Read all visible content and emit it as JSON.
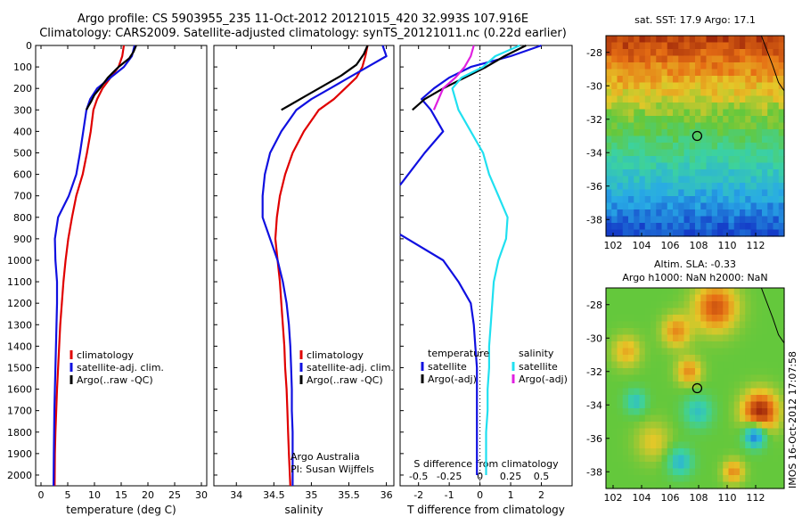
{
  "header": {
    "line1": "Argo profile: CS 5903955_235 11-Oct-2012 20121015_420 32.993S 107.916E",
    "line2": "Climatology: CARS2009. Satellite-adjusted climatology: synTS_20121011.nc (0.22d earlier)"
  },
  "side_stamp": "IMOS 16-Oct-2012 17:07:58",
  "colors": {
    "climatology": "#e00000",
    "satellite": "#1010e0",
    "argo": "#000000",
    "argo_adj_s": "#e020e0",
    "satellite_s": "#20e0f0"
  },
  "chart_data": [
    {
      "type": "line",
      "xlabel": "temperature (deg C)",
      "ylabel": "",
      "xlim": [
        -1,
        31
      ],
      "ylim": [
        2050,
        0
      ],
      "xticks": [
        "0",
        "5",
        "10",
        "15",
        "20",
        "25",
        "30"
      ],
      "yticks": [
        "0",
        "100",
        "200",
        "300",
        "400",
        "500",
        "600",
        "700",
        "800",
        "900",
        "1000",
        "1100",
        "1200",
        "1300",
        "1400",
        "1500",
        "1600",
        "1700",
        "1800",
        "1900",
        "2000"
      ],
      "legend": [
        "climatology",
        "satellite-adj. clim.",
        "Argo(..raw -QC)"
      ],
      "series": [
        {
          "name": "climatology",
          "color": "#e00000",
          "x": [
            15.5,
            15.2,
            14.5,
            13,
            11.5,
            10.5,
            9.8,
            9.3,
            8.6,
            7.8,
            6.6,
            5.8,
            5.1,
            4.6,
            4.2,
            3.9,
            3.6,
            3.4,
            3.2,
            3.0,
            2.85,
            2.7,
            2.6,
            2.55
          ],
          "y": [
            0,
            50,
            100,
            150,
            200,
            250,
            300,
            400,
            500,
            600,
            700,
            800,
            900,
            1000,
            1100,
            1200,
            1300,
            1400,
            1500,
            1600,
            1700,
            1800,
            1900,
            2050
          ]
        },
        {
          "name": "satellite-adj. clim.",
          "color": "#1010e0",
          "x": [
            17.5,
            17,
            15.5,
            13,
            10.5,
            9.2,
            8.5,
            7.9,
            7.3,
            6.6,
            5.2,
            3.2,
            2.6,
            2.7,
            3.0,
            3.0,
            2.9,
            2.8,
            2.7,
            2.6,
            2.5,
            2.45,
            2.4,
            2.35
          ],
          "y": [
            0,
            50,
            100,
            150,
            200,
            250,
            300,
            400,
            500,
            600,
            700,
            800,
            900,
            1000,
            1100,
            1200,
            1300,
            1400,
            1500,
            1600,
            1700,
            1800,
            1900,
            2050
          ]
        },
        {
          "name": "Argo(..raw -QC)",
          "color": "#000000",
          "x": [
            17.8,
            17.3,
            16.5,
            14.5,
            12.5,
            11,
            10,
            9.4,
            8.8,
            8.5
          ],
          "y": [
            0,
            30,
            60,
            100,
            150,
            200,
            230,
            260,
            285,
            300
          ]
        }
      ],
      "text_annotations": []
    },
    {
      "type": "line",
      "xlabel": "salinity",
      "ylabel": "",
      "xlim": [
        33.7,
        36.1
      ],
      "ylim": [
        2050,
        0
      ],
      "xticks": [
        "34",
        "34.5",
        "35",
        "35.5",
        "36"
      ],
      "legend": [
        "climatology",
        "satellite-adj. clim.",
        "Argo(..raw -QC)"
      ],
      "series": [
        {
          "name": "climatology",
          "color": "#e00000",
          "x": [
            35.75,
            35.72,
            35.68,
            35.6,
            35.45,
            35.3,
            35.1,
            34.9,
            34.75,
            34.65,
            34.58,
            34.54,
            34.52,
            34.55,
            34.58,
            34.6,
            34.62,
            34.64,
            34.65,
            34.67,
            34.68,
            34.69,
            34.7,
            34.72
          ],
          "y": [
            0,
            50,
            100,
            150,
            200,
            250,
            300,
            400,
            500,
            600,
            700,
            800,
            900,
            1000,
            1100,
            1200,
            1300,
            1400,
            1500,
            1600,
            1700,
            1800,
            1900,
            2050
          ]
        },
        {
          "name": "satellite-adj. clim.",
          "color": "#1010e0",
          "x": [
            35.95,
            36.0,
            35.75,
            35.5,
            35.25,
            35.0,
            34.8,
            34.6,
            34.45,
            34.38,
            34.35,
            34.35,
            34.45,
            34.55,
            34.62,
            34.67,
            34.7,
            34.72,
            34.73,
            34.74,
            34.74,
            34.75,
            34.75,
            34.75
          ],
          "y": [
            0,
            50,
            100,
            150,
            200,
            250,
            300,
            400,
            500,
            600,
            700,
            800,
            900,
            1000,
            1100,
            1200,
            1300,
            1400,
            1500,
            1600,
            1700,
            1800,
            1900,
            2050
          ]
        },
        {
          "name": "Argo(..raw -QC)",
          "color": "#000000",
          "x": [
            35.75,
            35.7,
            35.6,
            35.4,
            35.15,
            34.9,
            34.7,
            34.6
          ],
          "y": [
            0,
            40,
            90,
            140,
            190,
            240,
            280,
            300
          ]
        }
      ],
      "text_annotations": [
        "Argo Australia",
        "PI: Susan Wijffels"
      ]
    },
    {
      "type": "line",
      "xlabel": "T difference from climatology",
      "xlabel_top": "S difference from climatology",
      "xlim": [
        -2.6,
        3.0
      ],
      "ylim": [
        2050,
        0
      ],
      "xticks": [
        "-2",
        "-1",
        "0",
        "1",
        "2"
      ],
      "xticks_top": [
        "-0.5",
        "-0.25",
        "0",
        "0.25",
        "0.5"
      ],
      "legend_groups": [
        {
          "title": "temperature",
          "entries": [
            "satellite",
            "Argo(-adj)"
          ]
        },
        {
          "title": "salinity",
          "entries": [
            "satellite",
            "Argo(-adj)"
          ]
        }
      ],
      "series": [
        {
          "name": "satellite",
          "group": "temperature",
          "color": "#1010e0",
          "x": [
            2,
            1.0,
            -0.3,
            -1.0,
            -1.5,
            -1.9,
            -1.6,
            -1.2,
            -1.8,
            -2.6,
            null,
            -2.6,
            -1.2,
            -0.7,
            -0.3,
            -0.2,
            -0.15,
            -0.1,
            -0.1,
            -0.1,
            -0.1,
            -0.1,
            -0.1
          ],
          "y": [
            0,
            50,
            100,
            150,
            200,
            250,
            300,
            400,
            500,
            650,
            null,
            880,
            1000,
            1100,
            1200,
            1300,
            1400,
            1500,
            1600,
            1700,
            1800,
            1900,
            2000
          ]
        },
        {
          "name": "Argo(-adj)",
          "group": "temperature",
          "color": "#000000",
          "x": [
            1.5,
            0.8,
            0.2,
            -0.5,
            -1.2,
            -1.8,
            -2.2
          ],
          "y": [
            0,
            50,
            100,
            150,
            200,
            250,
            300
          ]
        },
        {
          "name": "satellite",
          "group": "salinity",
          "color": "#20e0f0",
          "x": [
            1.3,
            0.5,
            0.1,
            -0.6,
            -0.9,
            -0.7,
            -0.3,
            0.1,
            0.3,
            0.6,
            0.9,
            0.85,
            0.6,
            0.45,
            0.4,
            0.35,
            0.3,
            0.3,
            0.25,
            0.25,
            0.2,
            0.2
          ],
          "y": [
            0,
            50,
            100,
            150,
            200,
            300,
            400,
            500,
            600,
            700,
            800,
            900,
            1000,
            1100,
            1200,
            1300,
            1400,
            1500,
            1600,
            1700,
            1800,
            2000
          ]
        },
        {
          "name": "Argo(-adj)",
          "group": "salinity",
          "color": "#e020e0",
          "x": [
            -0.2,
            -0.3,
            -0.5,
            -0.8,
            -1.2,
            -1.5
          ],
          "y": [
            0,
            50,
            100,
            150,
            200,
            300
          ]
        }
      ]
    },
    {
      "type": "heatmap",
      "title": "sat. SST: 17.9 Argo: 17.1",
      "xticks": [
        "102",
        "104",
        "106",
        "108",
        "110",
        "112"
      ],
      "yticks": [
        "-28",
        "-30",
        "-32",
        "-34",
        "-36",
        "-38"
      ],
      "xlim": [
        101.5,
        114
      ],
      "ylim": [
        -39,
        -27
      ],
      "marker": {
        "lon": 107.9,
        "lat": -33
      }
    },
    {
      "type": "heatmap",
      "title_line1": "Altim. SLA: -0.33",
      "title_line2": "Argo h1000: NaN h2000: NaN",
      "xticks": [
        "102",
        "104",
        "106",
        "108",
        "110",
        "112"
      ],
      "yticks": [
        "-28",
        "-30",
        "-32",
        "-34",
        "-36",
        "-38"
      ],
      "xlim": [
        101.5,
        114
      ],
      "ylim": [
        -39,
        -27
      ],
      "marker": {
        "lon": 107.9,
        "lat": -33
      }
    }
  ]
}
